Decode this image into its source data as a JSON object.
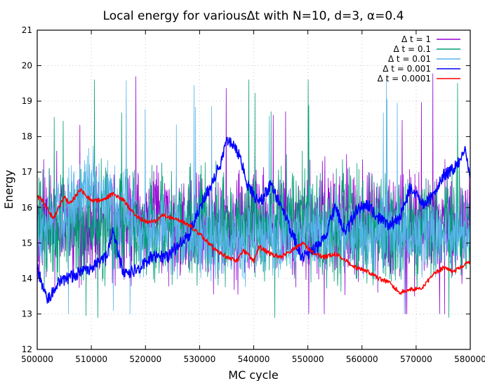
{
  "chart_data": {
    "type": "line",
    "title": "Local energy for variousΔt with N=10, d=3, α=0.4",
    "xlabel": "MC cycle",
    "ylabel": "Energy",
    "xlim": [
      500000,
      580000
    ],
    "ylim": [
      12,
      21
    ],
    "x_ticks": [
      500000,
      510000,
      520000,
      530000,
      540000,
      550000,
      560000,
      570000,
      580000
    ],
    "y_ticks": [
      12,
      13,
      14,
      15,
      16,
      17,
      18,
      19,
      20,
      21
    ],
    "grid": true,
    "legend_position": "top-right",
    "series": [
      {
        "name": "Δ t = 1",
        "color": "#9400d3",
        "style": "noisy",
        "x": [
          500000,
          510000,
          520000,
          530000,
          540000,
          550000,
          560000,
          570000,
          580000
        ],
        "y": [
          15.6,
          15.4,
          15.6,
          15.5,
          15.6,
          15.5,
          15.6,
          15.4,
          15.6
        ],
        "range": [
          13.0,
          20.4
        ]
      },
      {
        "name": "Δ t = 0.1",
        "color": "#009e73",
        "style": "noisy",
        "x": [
          500000,
          510000,
          520000,
          530000,
          540000,
          550000,
          560000,
          570000,
          580000
        ],
        "y": [
          15.5,
          15.6,
          15.5,
          15.5,
          15.6,
          15.5,
          15.5,
          15.4,
          15.5
        ],
        "range": [
          12.9,
          19.6
        ]
      },
      {
        "name": "Δ t = 0.01",
        "color": "#56b4e9",
        "style": "noisy",
        "x": [
          500000,
          510000,
          520000,
          530000,
          540000,
          550000,
          560000,
          570000,
          580000
        ],
        "y": [
          15.2,
          16.5,
          15.4,
          15.2,
          15.1,
          15.3,
          15.3,
          15.2,
          15.3
        ],
        "range": [
          13.0,
          19.9
        ]
      },
      {
        "name": "Δ t = 0.001",
        "color": "#0000ff",
        "style": "wander",
        "x": [
          500000,
          501000,
          502000,
          504000,
          507000,
          510000,
          513000,
          514000,
          516000,
          519000,
          521000,
          524000,
          526000,
          528000,
          530000,
          532000,
          534000,
          535000,
          537000,
          539000,
          541000,
          543000,
          545000,
          547000,
          549000,
          551000,
          553000,
          555000,
          557000,
          559000,
          561000,
          563000,
          565000,
          567000,
          569000,
          571000,
          573000,
          575000,
          577000,
          579000,
          580000
        ],
        "y": [
          14.3,
          13.8,
          13.4,
          13.9,
          14.1,
          14.3,
          14.7,
          15.3,
          14.1,
          14.3,
          14.6,
          14.6,
          14.9,
          15.2,
          16.0,
          16.6,
          17.3,
          17.9,
          17.6,
          16.6,
          16.1,
          16.6,
          16.1,
          15.3,
          14.6,
          14.8,
          15.1,
          16.0,
          15.3,
          15.9,
          16.1,
          15.7,
          15.5,
          15.7,
          16.6,
          16.1,
          16.3,
          16.9,
          17.1,
          17.6,
          16.8
        ]
      },
      {
        "name": "Δ t = 0.0001",
        "color": "#ff0000",
        "style": "wander",
        "x": [
          500000,
          501000,
          502000,
          503000,
          505000,
          506000,
          508000,
          510000,
          512000,
          514000,
          516000,
          518000,
          520000,
          522000,
          523000,
          525000,
          527000,
          529000,
          531000,
          533000,
          535000,
          537000,
          538000,
          540000,
          541000,
          543000,
          545000,
          547000,
          549000,
          551000,
          553000,
          555000,
          557000,
          559000,
          561000,
          563000,
          565000,
          567000,
          569000,
          571000,
          573000,
          575000,
          577000,
          580000
        ],
        "y": [
          16.3,
          16.2,
          15.9,
          15.7,
          16.3,
          16.1,
          16.5,
          16.2,
          16.2,
          16.4,
          16.2,
          15.8,
          15.6,
          15.6,
          15.8,
          15.7,
          15.6,
          15.4,
          15.1,
          14.8,
          14.6,
          14.5,
          14.8,
          14.5,
          14.9,
          14.7,
          14.6,
          14.8,
          15.0,
          14.7,
          14.6,
          14.7,
          14.5,
          14.3,
          14.2,
          14.0,
          13.9,
          13.6,
          13.7,
          13.7,
          14.1,
          14.3,
          14.2,
          14.5
        ]
      }
    ]
  }
}
